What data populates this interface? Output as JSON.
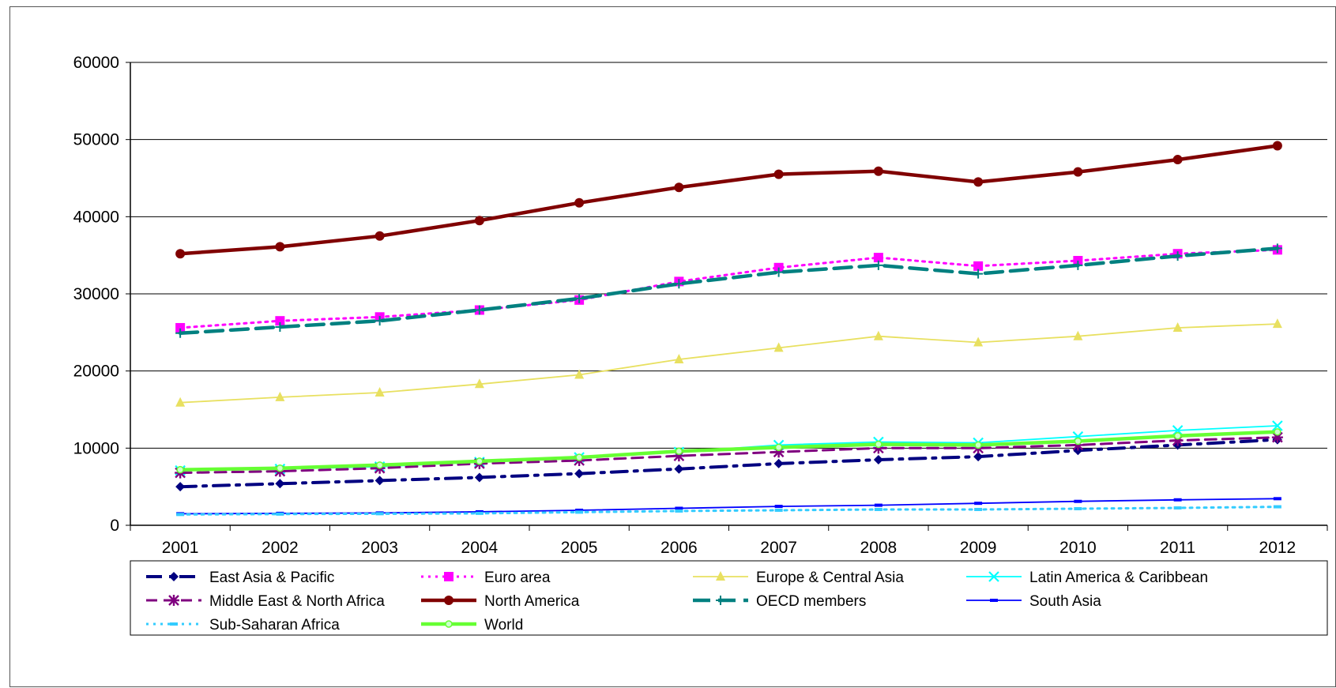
{
  "chart_data": {
    "type": "line",
    "title": "",
    "xlabel": "",
    "ylabel": "",
    "ylim": [
      0,
      60000
    ],
    "y_ticks": [
      "0",
      "10000",
      "20000",
      "30000",
      "40000",
      "50000",
      "60000"
    ],
    "x": [
      "2001",
      "2002",
      "2003",
      "2004",
      "2005",
      "2006",
      "2007",
      "2008",
      "2009",
      "2010",
      "2011",
      "2012"
    ],
    "grid": "horizontal",
    "legend_position": "bottom",
    "series": [
      {
        "name": "East Asia & Pacific",
        "color": "#000080",
        "line_style": "dash-dot",
        "marker": "diamond",
        "values": [
          5000,
          5400,
          5800,
          6200,
          6700,
          7300,
          8000,
          8500,
          8900,
          9700,
          10400,
          11100
        ]
      },
      {
        "name": "Euro area",
        "color": "#ff00ff",
        "line_style": "dotted",
        "marker": "square",
        "values": [
          25600,
          26500,
          27000,
          27900,
          29200,
          31600,
          33400,
          34700,
          33600,
          34300,
          35200,
          35700
        ]
      },
      {
        "name": "Europe & Central Asia",
        "color": "#e8e060",
        "line_style": "solid-thin",
        "marker": "triangle",
        "values": [
          15900,
          16600,
          17200,
          18300,
          19500,
          21500,
          23000,
          24500,
          23700,
          24500,
          25600,
          26100
        ]
      },
      {
        "name": "Latin America & Caribbean",
        "color": "#00ffff",
        "line_style": "solid-thin",
        "marker": "x",
        "values": [
          7100,
          7300,
          7600,
          8200,
          8800,
          9500,
          10400,
          10800,
          10700,
          11500,
          12300,
          12900
        ]
      },
      {
        "name": "Middle East & North Africa",
        "color": "#800080",
        "line_style": "dashed",
        "marker": "star",
        "values": [
          6800,
          7000,
          7400,
          8000,
          8400,
          9000,
          9500,
          10000,
          10000,
          10400,
          11000,
          11400
        ]
      },
      {
        "name": "North America",
        "color": "#800000",
        "line_style": "solid-thick",
        "marker": "circle",
        "values": [
          35200,
          36100,
          37500,
          39500,
          41800,
          43800,
          45500,
          45900,
          44500,
          45800,
          47400,
          49200
        ]
      },
      {
        "name": "OECD members",
        "color": "#008080",
        "line_style": "long-dash",
        "marker": "plus",
        "values": [
          24900,
          25700,
          26500,
          27900,
          29400,
          31300,
          32800,
          33700,
          32600,
          33700,
          34900,
          35900
        ]
      },
      {
        "name": "South Asia",
        "color": "#0000ff",
        "line_style": "solid-thin",
        "marker": "dash",
        "values": [
          1500,
          1550,
          1600,
          1750,
          1950,
          2200,
          2450,
          2600,
          2850,
          3100,
          3300,
          3450
        ]
      },
      {
        "name": "Sub-Saharan Africa",
        "color": "#33ccff",
        "line_style": "dotted",
        "marker": "dash",
        "values": [
          1400,
          1450,
          1500,
          1550,
          1700,
          1850,
          1950,
          2050,
          2050,
          2150,
          2250,
          2400
        ]
      },
      {
        "name": "World",
        "color": "#66ff33",
        "line_style": "solid-thick",
        "marker": "circle-small",
        "values": [
          7200,
          7400,
          7800,
          8300,
          8800,
          9600,
          10100,
          10500,
          10400,
          10900,
          11600,
          12100
        ]
      }
    ]
  }
}
